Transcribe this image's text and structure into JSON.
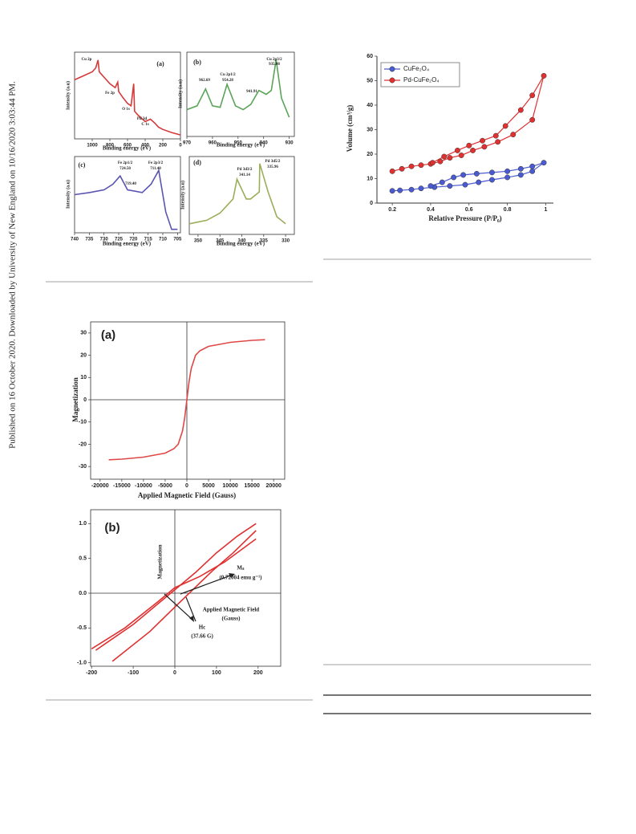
{
  "side_note": "Published on 16 October 2020. Downloaded by University of New England on 10/16/2020 3:03:44 PM.",
  "chart_data": [
    {
      "type": "line",
      "panel": "(a)",
      "xlabel": "Binding energy (eV)",
      "ylabel": "Intensity (a.u)",
      "xlim": [
        1200,
        0
      ],
      "xticks": [
        1000,
        800,
        600,
        400,
        200,
        0
      ],
      "ylim": [
        0,
        1.1
      ],
      "annotations": [
        "Cu 2p",
        "Fe 2p",
        "O 1s",
        "Pd 3d",
        "C 1s"
      ],
      "series": [
        {
          "color": "#d43a3a",
          "x": [
            1200,
            1100,
            1000,
            960,
            935,
            920,
            880,
            800,
            740,
            711,
            700,
            650,
            600,
            560,
            530,
            520,
            480,
            400,
            340,
            290,
            250,
            200,
            100,
            0
          ],
          "values": [
            0.75,
            0.8,
            0.85,
            0.9,
            1.0,
            0.85,
            0.8,
            0.7,
            0.65,
            0.72,
            0.6,
            0.52,
            0.45,
            0.42,
            0.7,
            0.35,
            0.3,
            0.22,
            0.25,
            0.2,
            0.15,
            0.12,
            0.08,
            0.05
          ]
        }
      ]
    },
    {
      "type": "line",
      "panel": "(b)",
      "xlabel": "Binding energy (eV)",
      "ylabel": "Intensity (a.u)",
      "xlim": [
        970,
        928
      ],
      "xticks": [
        970,
        960,
        950,
        940,
        930
      ],
      "ylim": [
        0,
        1.1
      ],
      "annotations": [
        "962.69",
        "Cu 2p1/2",
        "954.28",
        "941.91",
        "Cu 2p3/2",
        "935.08"
      ],
      "series": [
        {
          "color": "#5aa45a",
          "x": [
            970,
            966,
            962.7,
            960,
            957,
            954.3,
            951,
            948,
            945,
            941.9,
            939,
            937,
            935.1,
            933,
            930
          ],
          "values": [
            0.35,
            0.4,
            0.62,
            0.4,
            0.38,
            0.68,
            0.4,
            0.35,
            0.42,
            0.6,
            0.55,
            0.6,
            1.0,
            0.5,
            0.25
          ]
        }
      ]
    },
    {
      "type": "line",
      "panel": "(c)",
      "xlabel": "Binding energy (eV)",
      "ylabel": "Intensity (a.u)",
      "xlim": [
        740,
        704
      ],
      "xticks": [
        740,
        735,
        730,
        725,
        720,
        715,
        710,
        705
      ],
      "ylim": [
        0,
        1.1
      ],
      "annotations": [
        "Fe 2p1/2",
        "724.50",
        "719.40",
        "Fe 2p3/2",
        "711.40"
      ],
      "series": [
        {
          "color": "#5a55b0",
          "x": [
            740,
            735,
            730,
            727,
            724.5,
            722,
            719.4,
            717,
            714,
            711.4,
            709,
            707,
            705
          ],
          "values": [
            0.55,
            0.58,
            0.62,
            0.7,
            0.82,
            0.62,
            0.6,
            0.58,
            0.7,
            0.9,
            0.3,
            0.05,
            0.05
          ]
        }
      ]
    },
    {
      "type": "line",
      "panel": "(d)",
      "xlabel": "Binding energy (eV)",
      "ylabel": "Intensity (a.u)",
      "xlim": [
        352,
        328
      ],
      "xticks": [
        350,
        345,
        340,
        335,
        330
      ],
      "ylim": [
        0,
        1.1
      ],
      "annotations": [
        "Pd 3d3/2",
        "341.14",
        "Pd 3d5/2",
        "335.96"
      ],
      "series": [
        {
          "color": "#9aae5a",
          "x": [
            352,
            348,
            345,
            342,
            341.1,
            339,
            338,
            336,
            335.9,
            334,
            332,
            330
          ],
          "values": [
            0.15,
            0.2,
            0.3,
            0.5,
            0.78,
            0.5,
            0.5,
            0.6,
            1.0,
            0.6,
            0.25,
            0.15
          ]
        }
      ]
    },
    {
      "type": "line",
      "markers": true,
      "legend": "upper-left",
      "xlabel": "Relative Pressure (P/P₀)",
      "ylabel": "Volume  (cm³/g)",
      "xlim": [
        0.12,
        1.04
      ],
      "xticks": [
        0.2,
        0.4,
        0.6,
        0.8,
        1.0
      ],
      "ylim": [
        0,
        60
      ],
      "yticks": [
        0,
        10,
        20,
        30,
        40,
        50,
        60
      ],
      "series": [
        {
          "name": "CuFe₂O₄",
          "color": "#4a5ad0",
          "x": [
            0.2,
            0.24,
            0.3,
            0.35,
            0.42,
            0.5,
            0.58,
            0.65,
            0.72,
            0.8,
            0.87,
            0.93,
            0.99,
            0.93,
            0.87,
            0.8,
            0.72,
            0.64,
            0.57,
            0.52,
            0.46,
            0.4
          ],
          "values": [
            5,
            5.2,
            5.5,
            6,
            6.5,
            7,
            7.5,
            8.5,
            9.5,
            10.5,
            11.5,
            13,
            16.5,
            15,
            14,
            13,
            12.5,
            12,
            11.5,
            10.5,
            8.5,
            7
          ]
        },
        {
          "name": "Pd-CuFe₂O₄",
          "color": "#e03030",
          "x": [
            0.2,
            0.25,
            0.3,
            0.35,
            0.4,
            0.45,
            0.5,
            0.56,
            0.62,
            0.68,
            0.75,
            0.83,
            0.93,
            0.99,
            0.93,
            0.87,
            0.79,
            0.74,
            0.67,
            0.6,
            0.54,
            0.47,
            0.41
          ],
          "values": [
            13,
            14,
            15,
            15.5,
            16,
            17,
            18.5,
            19.5,
            21.5,
            23,
            25,
            28,
            34,
            52,
            44,
            38,
            31.5,
            27.5,
            25.5,
            23.5,
            21.5,
            19,
            16.5
          ]
        }
      ]
    },
    {
      "type": "line",
      "zero_lines": true,
      "panel": "(a)",
      "xlabel": "Applied Magnetic Field (Gauss)",
      "ylabel": "Magnetization",
      "xlim": [
        -22000,
        22000
      ],
      "xticks": [
        -20000,
        -15000,
        -10000,
        -5000,
        0,
        5000,
        10000,
        15000,
        20000
      ],
      "ylim": [
        -35,
        35
      ],
      "yticks": [
        -30,
        -20,
        -10,
        0,
        10,
        20,
        30
      ],
      "series": [
        {
          "color": "#e04848",
          "x": [
            -18000,
            -15000,
            -10000,
            -5000,
            -3000,
            -2000,
            -1000,
            -500,
            0,
            500,
            1000,
            2000,
            3000,
            5000,
            10000,
            15000,
            18000
          ],
          "values": [
            -27,
            -26.7,
            -25.8,
            -24,
            -22,
            -20,
            -14,
            -8,
            0,
            8,
            14,
            20,
            22,
            24,
            25.8,
            26.7,
            27
          ]
        }
      ]
    },
    {
      "type": "line",
      "zero_lines": true,
      "panel": "(b)",
      "ylabel": "Magnetization",
      "xlim": [
        -210,
        210
      ],
      "xticks": [
        -200,
        -100,
        0,
        100,
        200
      ],
      "ylim": [
        -1.05,
        1.05
      ],
      "yticks": [
        {
          "value": -1,
          "label": "-1.0"
        },
        -0.5,
        {
          "value": 0,
          "label": "0.0"
        },
        0.5,
        {
          "value": 1,
          "label": "1.0"
        }
      ],
      "annotations": [
        "Applied Magnetic Field",
        "(Gauss)",
        "Mₛ",
        "(0.72004 emu g⁻¹)",
        "Hc",
        "(37.66 G)"
      ],
      "series": [
        {
          "color": "#e03030",
          "x": [
            -190,
            -100,
            -40,
            0,
            50,
            100,
            150,
            195
          ],
          "values": [
            -0.82,
            -0.45,
            -0.15,
            0.05,
            0.3,
            0.58,
            0.82,
            1.0
          ]
        },
        {
          "color": "#e03030",
          "x": [
            -150,
            -60,
            0,
            38,
            90,
            140,
            195
          ],
          "values": [
            -0.98,
            -0.55,
            -0.2,
            0.02,
            0.32,
            0.58,
            0.9
          ]
        },
        {
          "color": "#e03030",
          "x": [
            -200,
            -120,
            -40,
            0,
            60,
            120,
            195
          ],
          "values": [
            -0.8,
            -0.5,
            -0.12,
            0.08,
            0.24,
            0.45,
            0.78
          ]
        }
      ]
    }
  ]
}
